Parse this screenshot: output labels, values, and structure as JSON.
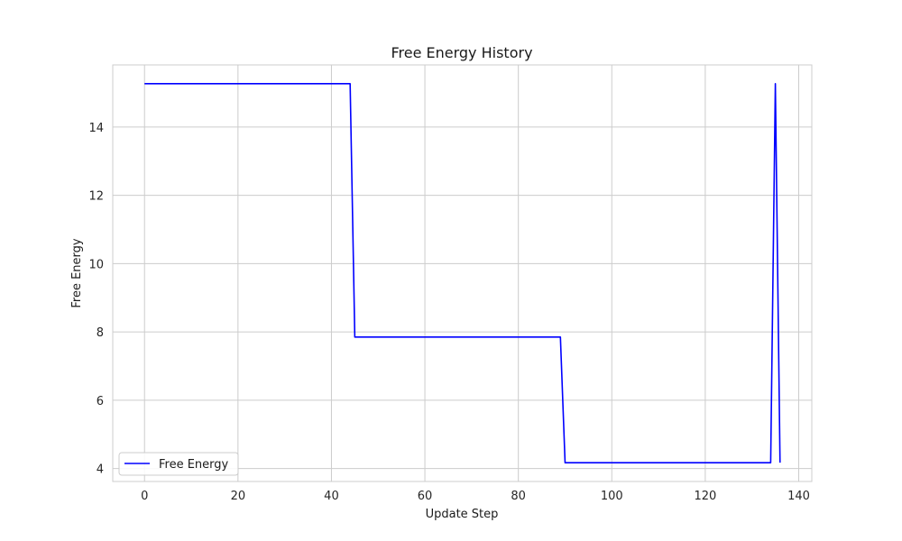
{
  "chart_data": {
    "type": "line",
    "title": "Free Energy History",
    "xlabel": "Update Step",
    "ylabel": "Free Energy",
    "xlim": [
      -6.8,
      142.8
    ],
    "ylim": [
      3.62,
      15.82
    ],
    "xticks": [
      0,
      20,
      40,
      60,
      80,
      100,
      120,
      140
    ],
    "yticks": [
      4,
      6,
      8,
      10,
      12,
      14
    ],
    "grid": true,
    "legend_position": "lower-left",
    "series": [
      {
        "name": "Free Energy",
        "color": "#0000ff",
        "x": [
          0,
          44,
          45,
          89,
          90,
          134,
          135,
          136
        ],
        "y": [
          15.27,
          15.27,
          7.85,
          7.85,
          4.17,
          4.17,
          15.27,
          4.17
        ]
      }
    ]
  }
}
